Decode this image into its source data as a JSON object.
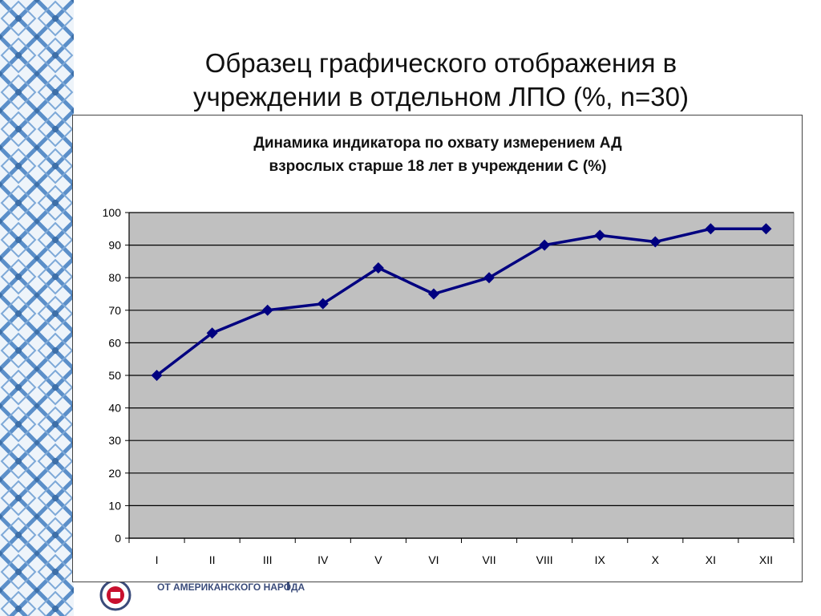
{
  "slide": {
    "title_line1": "Образец графического отображения в",
    "title_line2": "учреждении в отдельном ЛПО (%, n=30)",
    "footer_text": "ОТ АМЕРИКАНСКОГО НАРОДА"
  },
  "colors": {
    "plot_background": "#c0c0c0",
    "series_line": "#000080",
    "gridline": "#000000",
    "pattern_blue": "#5b8fc9",
    "pattern_light": "#eef4fa"
  },
  "chart_data": {
    "type": "line",
    "title_line1": "Динамика индикатора по охвату измерением АД",
    "title_line2": "взрослых старше 18 лет в учреждении С (%)",
    "categories": [
      "I",
      "II",
      "III",
      "IV",
      "V",
      "VI",
      "VII",
      "VIII",
      "IX",
      "X",
      "XI",
      "XII"
    ],
    "series": [
      {
        "values": [
          50,
          63,
          70,
          72,
          83,
          75,
          80,
          90,
          93,
          91,
          95,
          95
        ],
        "marker": "diamond"
      }
    ],
    "xlabel": "",
    "ylabel": "",
    "ylim": [
      0,
      100
    ],
    "yticks": [
      0,
      10,
      20,
      30,
      40,
      50,
      60,
      70,
      80,
      90,
      100
    ],
    "grid": true,
    "legend": "none"
  }
}
